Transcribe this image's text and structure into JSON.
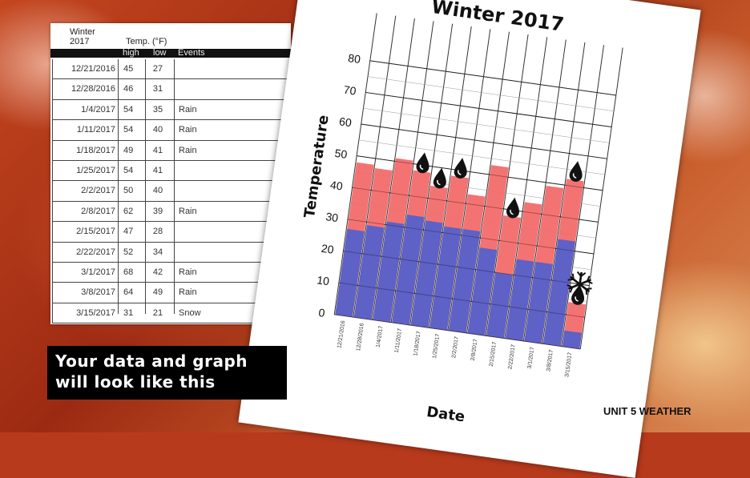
{
  "table": {
    "season": "Winter",
    "year": "2017",
    "temp_label": "Temp. (°F)",
    "columns": [
      "high",
      "low",
      "Events"
    ],
    "rows": [
      {
        "date": "12/21/2016",
        "high": "45",
        "low": "27",
        "event": ""
      },
      {
        "date": "12/28/2016",
        "high": "46",
        "low": "31",
        "event": ""
      },
      {
        "date": "1/4/2017",
        "high": "54",
        "low": "35",
        "event": "Rain"
      },
      {
        "date": "1/11/2017",
        "high": "54",
        "low": "40",
        "event": "Rain"
      },
      {
        "date": "1/18/2017",
        "high": "49",
        "low": "41",
        "event": "Rain"
      },
      {
        "date": "1/25/2017",
        "high": "54",
        "low": "41",
        "event": ""
      },
      {
        "date": "2/2/2017",
        "high": "50",
        "low": "40",
        "event": ""
      },
      {
        "date": "2/8/2017",
        "high": "62",
        "low": "39",
        "event": "Rain"
      },
      {
        "date": "2/15/2017",
        "high": "47",
        "low": "28",
        "event": ""
      },
      {
        "date": "2/22/2017",
        "high": "52",
        "low": "34",
        "event": ""
      },
      {
        "date": "3/1/2017",
        "high": "68",
        "low": "42",
        "event": "Rain"
      },
      {
        "date": "3/8/2017",
        "high": "64",
        "low": "49",
        "event": "Rain"
      },
      {
        "date": "3/15/2017",
        "high": "31",
        "low": "21",
        "event": "Snow"
      }
    ]
  },
  "chart_data": {
    "type": "bar",
    "title": "Winter 2017",
    "xlabel": "Date",
    "ylabel": "Temperature",
    "ylim": [
      0,
      80
    ],
    "yticks": [
      "0",
      "10",
      "20",
      "30",
      "40",
      "50",
      "60",
      "70",
      "80"
    ],
    "categories": [
      "12/21/2016",
      "12/28/2016",
      "1/4/2017",
      "1/11/2017",
      "1/18/2017",
      "1/25/2017",
      "2/2/2017",
      "2/8/2017",
      "2/15/2017",
      "2/22/2017",
      "3/1/2017",
      "3/8/2017",
      "3/15/2017"
    ],
    "series": [
      {
        "values": [
          27,
          29,
          31,
          34,
          33,
          32,
          32,
          27,
          20,
          25,
          25,
          33,
          5
        ],
        "color": "#5560c9"
      },
      {
        "values": [
          48,
          47,
          51,
          48,
          44,
          48,
          43,
          53,
          38,
          43,
          49,
          52,
          14
        ],
        "color": "#f26b6b"
      }
    ],
    "markers": [
      {
        "index": 4,
        "icon": "rain-drop-icon"
      },
      {
        "index": 5,
        "icon": "rain-drop-icon"
      },
      {
        "index": 6,
        "icon": "rain-drop-icon"
      },
      {
        "index": 9,
        "icon": "rain-drop-icon"
      },
      {
        "index": 12,
        "icon": "rain-drop-icon"
      },
      {
        "index": 13,
        "icon": "rain-drop-icon"
      },
      {
        "index": 13,
        "icon": "snowflake-icon"
      }
    ],
    "grid": true
  },
  "caption": {
    "line1": "Your data and graph",
    "line2": "will look like this"
  },
  "footer": "UNIT 5 WEATHER"
}
